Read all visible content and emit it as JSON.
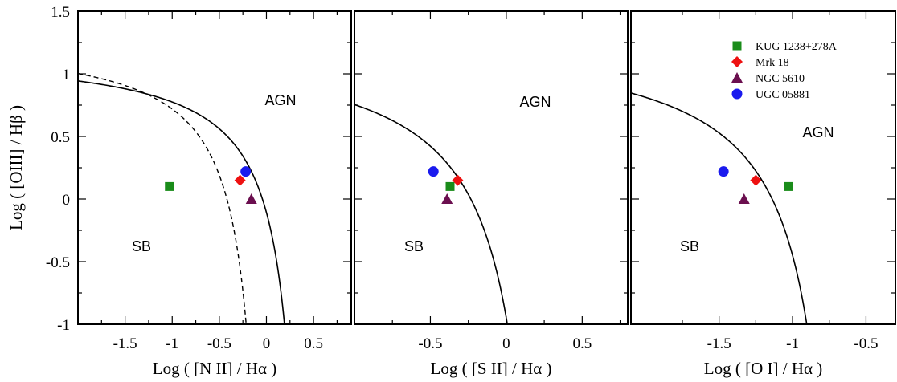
{
  "chart_data": [
    {
      "type": "scatter",
      "panel": "left",
      "xlabel": "Log ( [N II] / Hα )",
      "ylabel": "Log ( [OIII] / Hβ )",
      "xlim": [
        -2.0,
        0.9
      ],
      "ylim": [
        -1.0,
        1.5
      ],
      "x_ticks": [
        -1.5,
        -1,
        -0.5,
        0,
        0.5
      ],
      "x_tick_labels": [
        "-1.5",
        "-1",
        "-0.5",
        "0",
        "0.5"
      ],
      "y_ticks": [
        -1,
        -0.5,
        0,
        0.5,
        1,
        1.5
      ],
      "y_tick_labels": [
        "-1",
        "-0.5",
        "0",
        "0.5",
        "1",
        "1.5"
      ],
      "region_labels": [
        "AGN",
        "SB"
      ],
      "series": [
        {
          "name": "KUG 1238+278A",
          "color": "#1a8c1a",
          "marker": "square",
          "points": [
            [
              -1.03,
              0.1
            ]
          ]
        },
        {
          "name": "Mrk 18",
          "color": "#ee1111",
          "marker": "diamond",
          "points": [
            [
              -0.28,
              0.15
            ]
          ]
        },
        {
          "name": "NGC 5610",
          "color": "#6b0f4f",
          "marker": "triangle",
          "points": [
            [
              -0.16,
              0.0
            ]
          ]
        },
        {
          "name": "UGC 05881",
          "color": "#1a1aee",
          "marker": "circle",
          "points": [
            [
              -0.22,
              0.22
            ]
          ]
        }
      ],
      "curves": [
        "kewley_nii",
        "kauffmann_nii"
      ]
    },
    {
      "type": "scatter",
      "panel": "middle",
      "xlabel": "Log ( [S II] / Hα )",
      "xlim": [
        -1.0,
        0.8
      ],
      "ylim": [
        -1.0,
        1.5
      ],
      "x_ticks": [
        -0.5,
        0,
        0.5
      ],
      "x_tick_labels": [
        "-0.5",
        "0",
        "0.5"
      ],
      "region_labels": [
        "AGN",
        "SB"
      ],
      "series": [
        {
          "name": "KUG 1238+278A",
          "color": "#1a8c1a",
          "marker": "square",
          "points": [
            [
              -0.37,
              0.1
            ]
          ]
        },
        {
          "name": "Mrk 18",
          "color": "#ee1111",
          "marker": "diamond",
          "points": [
            [
              -0.32,
              0.15
            ]
          ]
        },
        {
          "name": "NGC 5610",
          "color": "#6b0f4f",
          "marker": "triangle",
          "points": [
            [
              -0.39,
              0.0
            ]
          ]
        },
        {
          "name": "UGC 05881",
          "color": "#1a1aee",
          "marker": "circle",
          "points": [
            [
              -0.48,
              0.22
            ]
          ]
        }
      ],
      "curves": [
        "kewley_sii"
      ]
    },
    {
      "type": "scatter",
      "panel": "right",
      "xlabel": "Log ( [O I] / Hα )",
      "xlim": [
        -2.1,
        -0.3
      ],
      "ylim": [
        -1.0,
        1.5
      ],
      "x_ticks": [
        -1.5,
        -1,
        -0.5
      ],
      "x_tick_labels": [
        "-1.5",
        "-1",
        "-0.5"
      ],
      "region_labels": [
        "AGN",
        "SB"
      ],
      "legend_position": "top-right",
      "series": [
        {
          "name": "KUG 1238+278A",
          "color": "#1a8c1a",
          "marker": "square",
          "points": [
            [
              -1.03,
              0.1
            ]
          ]
        },
        {
          "name": "Mrk 18",
          "color": "#ee1111",
          "marker": "diamond",
          "points": [
            [
              -1.25,
              0.15
            ]
          ]
        },
        {
          "name": "NGC 5610",
          "color": "#6b0f4f",
          "marker": "triangle",
          "points": [
            [
              -1.33,
              0.0
            ]
          ]
        },
        {
          "name": "UGC 05881",
          "color": "#1a1aee",
          "marker": "circle",
          "points": [
            [
              -1.47,
              0.22
            ]
          ]
        }
      ],
      "curves": [
        "kewley_oi"
      ]
    }
  ]
}
